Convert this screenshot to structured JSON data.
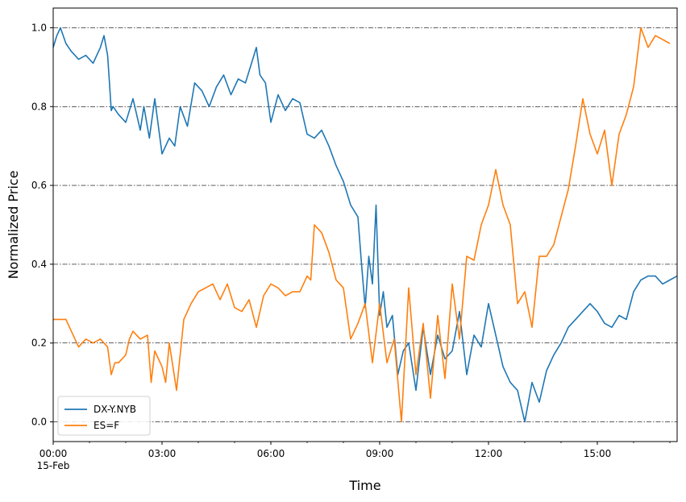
{
  "chart_data": {
    "type": "line",
    "title": "",
    "xlabel": "Time",
    "ylabel": "Normalized Price",
    "x_unit": "hour",
    "xlim": [
      0,
      17.2
    ],
    "ylim": [
      -0.05,
      1.05
    ],
    "x_ticks": [
      {
        "value": 0,
        "label": "00:00",
        "sublabel": "15-Feb"
      },
      {
        "value": 3,
        "label": "03:00"
      },
      {
        "value": 6,
        "label": "06:00"
      },
      {
        "value": 9,
        "label": "09:00"
      },
      {
        "value": 12,
        "label": "12:00"
      },
      {
        "value": 15,
        "label": "15:00"
      }
    ],
    "y_ticks": [
      {
        "value": 0.0,
        "label": "0.0"
      },
      {
        "value": 0.2,
        "label": "0.2"
      },
      {
        "value": 0.4,
        "label": "0.4"
      },
      {
        "value": 0.6,
        "label": "0.6"
      },
      {
        "value": 0.8,
        "label": "0.8"
      },
      {
        "value": 1.0,
        "label": "1.0"
      }
    ],
    "grid": {
      "y": true,
      "x": false,
      "style": "dashdot"
    },
    "legend": {
      "position": "lower-left"
    },
    "series": [
      {
        "name": "DX-Y.NYB",
        "color": "#1f77b4",
        "x": [
          0,
          0.1,
          0.2,
          0.35,
          0.5,
          0.7,
          0.9,
          1.1,
          1.3,
          1.4,
          1.5,
          1.55,
          1.6,
          1.65,
          1.8,
          2.0,
          2.2,
          2.4,
          2.5,
          2.65,
          2.8,
          3.0,
          3.2,
          3.35,
          3.5,
          3.7,
          3.9,
          4.1,
          4.3,
          4.5,
          4.7,
          4.9,
          5.1,
          5.3,
          5.5,
          5.6,
          5.7,
          5.85,
          6.0,
          6.2,
          6.4,
          6.6,
          6.8,
          7.0,
          7.2,
          7.4,
          7.6,
          7.8,
          8.0,
          8.2,
          8.4,
          8.5,
          8.6,
          8.7,
          8.8,
          8.9,
          9.0,
          9.1,
          9.2,
          9.35,
          9.5,
          9.65,
          9.8,
          10.0,
          10.2,
          10.4,
          10.6,
          10.8,
          11.0,
          11.2,
          11.4,
          11.6,
          11.8,
          12.0,
          12.2,
          12.4,
          12.6,
          12.8,
          13.0,
          13.2,
          13.4,
          13.6,
          13.8,
          14.0,
          14.2,
          14.4,
          14.6,
          14.8,
          15.0,
          15.2,
          15.4,
          15.6,
          15.8,
          16.0,
          16.2,
          16.4,
          16.6,
          16.8,
          17.0,
          17.2
        ],
        "y": [
          0.95,
          0.98,
          1.0,
          0.96,
          0.94,
          0.92,
          0.93,
          0.91,
          0.95,
          0.98,
          0.93,
          0.86,
          0.79,
          0.8,
          0.78,
          0.76,
          0.82,
          0.74,
          0.8,
          0.72,
          0.82,
          0.68,
          0.72,
          0.7,
          0.8,
          0.75,
          0.86,
          0.84,
          0.8,
          0.85,
          0.88,
          0.83,
          0.87,
          0.86,
          0.92,
          0.95,
          0.88,
          0.86,
          0.76,
          0.83,
          0.79,
          0.82,
          0.81,
          0.73,
          0.72,
          0.74,
          0.7,
          0.65,
          0.61,
          0.55,
          0.52,
          0.4,
          0.29,
          0.42,
          0.35,
          0.55,
          0.27,
          0.33,
          0.24,
          0.27,
          0.12,
          0.18,
          0.2,
          0.08,
          0.24,
          0.12,
          0.22,
          0.16,
          0.18,
          0.28,
          0.12,
          0.22,
          0.19,
          0.3,
          0.22,
          0.14,
          0.1,
          0.08,
          0.0,
          0.1,
          0.05,
          0.13,
          0.17,
          0.2,
          0.24,
          0.26,
          0.28,
          0.3,
          0.28,
          0.25,
          0.24,
          0.27,
          0.26,
          0.33,
          0.36,
          0.37,
          0.37,
          0.35,
          0.36,
          0.37
        ]
      },
      {
        "name": "ES=F",
        "color": "#ff7f0e",
        "x": [
          0,
          0.2,
          0.35,
          0.5,
          0.7,
          0.9,
          1.1,
          1.3,
          1.5,
          1.6,
          1.7,
          1.8,
          2.0,
          2.1,
          2.2,
          2.4,
          2.6,
          2.7,
          2.8,
          3.0,
          3.1,
          3.2,
          3.4,
          3.6,
          3.8,
          4.0,
          4.2,
          4.4,
          4.6,
          4.8,
          5.0,
          5.2,
          5.4,
          5.6,
          5.8,
          6.0,
          6.2,
          6.4,
          6.6,
          6.8,
          6.9,
          7.0,
          7.1,
          7.2,
          7.4,
          7.6,
          7.8,
          8.0,
          8.2,
          8.4,
          8.6,
          8.8,
          9.0,
          9.2,
          9.4,
          9.6,
          9.8,
          10.0,
          10.2,
          10.4,
          10.6,
          10.8,
          11.0,
          11.2,
          11.4,
          11.6,
          11.8,
          12.0,
          12.2,
          12.4,
          12.6,
          12.8,
          13.0,
          13.2,
          13.4,
          13.6,
          13.8,
          14.0,
          14.2,
          14.4,
          14.6,
          14.8,
          15.0,
          15.2,
          15.4,
          15.6,
          15.8,
          16.0,
          16.2,
          16.4,
          16.6,
          16.8,
          17.0
        ],
        "y": [
          0.26,
          0.26,
          0.26,
          0.23,
          0.19,
          0.21,
          0.2,
          0.21,
          0.19,
          0.12,
          0.15,
          0.15,
          0.17,
          0.21,
          0.23,
          0.21,
          0.22,
          0.1,
          0.18,
          0.14,
          0.1,
          0.2,
          0.08,
          0.26,
          0.3,
          0.33,
          0.34,
          0.35,
          0.31,
          0.35,
          0.29,
          0.28,
          0.31,
          0.24,
          0.32,
          0.35,
          0.34,
          0.32,
          0.33,
          0.33,
          0.35,
          0.37,
          0.36,
          0.5,
          0.48,
          0.43,
          0.36,
          0.34,
          0.21,
          0.25,
          0.3,
          0.15,
          0.3,
          0.15,
          0.21,
          0.0,
          0.34,
          0.12,
          0.25,
          0.06,
          0.27,
          0.11,
          0.35,
          0.21,
          0.42,
          0.41,
          0.5,
          0.55,
          0.64,
          0.55,
          0.5,
          0.3,
          0.33,
          0.24,
          0.42,
          0.42,
          0.45,
          0.52,
          0.59,
          0.7,
          0.82,
          0.73,
          0.68,
          0.74,
          0.6,
          0.73,
          0.78,
          0.85,
          1.0,
          0.95,
          0.98,
          0.97,
          0.96
        ]
      }
    ]
  }
}
